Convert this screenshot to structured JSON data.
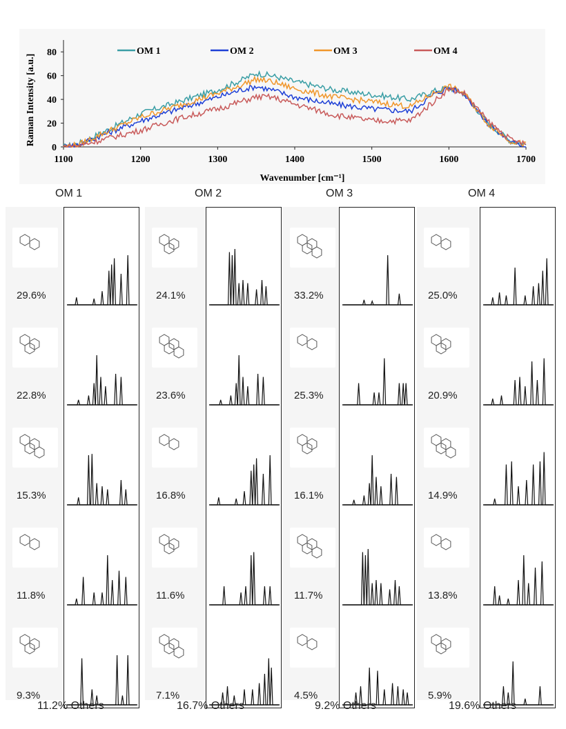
{
  "chart_data": [
    {
      "type": "line",
      "xlabel": "Wavenumber [cm⁻¹]",
      "ylabel": "Raman Intensity [a.u.]",
      "xlim": [
        1100,
        1700
      ],
      "ylim": [
        0,
        90
      ],
      "x_ticks": [
        "1100",
        "1200",
        "1300",
        "1400",
        "1500",
        "1600",
        "1700"
      ],
      "y_ticks": [
        "0",
        "20",
        "40",
        "60",
        "80"
      ],
      "legend_position": "top",
      "series": [
        {
          "name": "OM 1",
          "color": "#3a9ea5",
          "x": [
            1100,
            1120,
            1150,
            1200,
            1250,
            1300,
            1330,
            1350,
            1370,
            1400,
            1450,
            1500,
            1550,
            1580,
            1600,
            1620,
            1650,
            1680,
            1700
          ],
          "values": [
            0,
            3,
            12,
            28,
            38,
            48,
            56,
            62,
            60,
            55,
            48,
            44,
            40,
            47,
            50,
            45,
            20,
            5,
            2
          ]
        },
        {
          "name": "OM 2",
          "color": "#1d3fd6",
          "x": [
            1100,
            1120,
            1150,
            1200,
            1250,
            1300,
            1330,
            1350,
            1370,
            1400,
            1450,
            1500,
            1550,
            1580,
            1600,
            1620,
            1650,
            1680,
            1700
          ],
          "values": [
            0,
            2,
            10,
            22,
            32,
            42,
            48,
            51,
            48,
            42,
            36,
            32,
            30,
            44,
            50,
            45,
            20,
            4,
            1
          ]
        },
        {
          "name": "OM 3",
          "color": "#f0962a",
          "x": [
            1100,
            1120,
            1150,
            1200,
            1250,
            1300,
            1330,
            1350,
            1370,
            1400,
            1450,
            1500,
            1550,
            1580,
            1600,
            1620,
            1650,
            1680,
            1700
          ],
          "values": [
            0,
            2,
            11,
            25,
            35,
            45,
            52,
            57,
            55,
            49,
            42,
            38,
            34,
            45,
            51,
            45,
            20,
            5,
            2
          ]
        },
        {
          "name": "OM 4",
          "color": "#c85a5a",
          "x": [
            1100,
            1120,
            1150,
            1200,
            1250,
            1300,
            1330,
            1350,
            1370,
            1400,
            1450,
            1500,
            1550,
            1580,
            1600,
            1620,
            1650,
            1680,
            1700
          ],
          "values": [
            0,
            1,
            6,
            14,
            24,
            32,
            38,
            42,
            42,
            36,
            27,
            22,
            22,
            38,
            49,
            45,
            22,
            6,
            2
          ]
        }
      ]
    },
    {
      "type": "line",
      "grid_of_spectra": true,
      "columns": [
        {
          "title": "OM 1",
          "others": "11.2% Others",
          "rows": [
            {
              "pct": "29.6%",
              "peaks": [
                [
                  0.12,
                  0.12
                ],
                [
                  0.38,
                  0.1
                ],
                [
                  0.5,
                  0.22
                ],
                [
                  0.6,
                  0.55
                ],
                [
                  0.64,
                  0.65
                ],
                [
                  0.68,
                  0.75
                ],
                [
                  0.78,
                  0.5
                ],
                [
                  0.88,
                  0.8
                ]
              ]
            },
            {
              "pct": "22.8%",
              "peaks": [
                [
                  0.15,
                  0.08
                ],
                [
                  0.3,
                  0.15
                ],
                [
                  0.38,
                  0.35
                ],
                [
                  0.42,
                  0.8
                ],
                [
                  0.48,
                  0.45
                ],
                [
                  0.55,
                  0.3
                ],
                [
                  0.7,
                  0.5
                ],
                [
                  0.78,
                  0.45
                ]
              ]
            },
            {
              "pct": "15.3%",
              "peaks": [
                [
                  0.15,
                  0.12
                ],
                [
                  0.3,
                  0.8
                ],
                [
                  0.35,
                  0.82
                ],
                [
                  0.42,
                  0.35
                ],
                [
                  0.5,
                  0.3
                ],
                [
                  0.58,
                  0.25
                ],
                [
                  0.78,
                  0.4
                ],
                [
                  0.85,
                  0.25
                ]
              ]
            },
            {
              "pct": "11.8%",
              "peaks": [
                [
                  0.12,
                  0.1
                ],
                [
                  0.22,
                  0.45
                ],
                [
                  0.38,
                  0.2
                ],
                [
                  0.5,
                  0.2
                ],
                [
                  0.58,
                  0.8
                ],
                [
                  0.65,
                  0.4
                ],
                [
                  0.75,
                  0.55
                ],
                [
                  0.85,
                  0.45
                ]
              ]
            },
            {
              "pct": "9.3%",
              "peaks": [
                [
                  0.2,
                  0.75
                ],
                [
                  0.35,
                  0.25
                ],
                [
                  0.42,
                  0.15
                ],
                [
                  0.72,
                  0.8
                ],
                [
                  0.8,
                  0.15
                ],
                [
                  0.88,
                  0.8
                ]
              ]
            }
          ]
        },
        {
          "title": "OM 2",
          "others": "16.7% Others",
          "rows": [
            {
              "pct": "24.1%",
              "peaks": [
                [
                  0.28,
                  0.85
                ],
                [
                  0.32,
                  0.8
                ],
                [
                  0.36,
                  0.9
                ],
                [
                  0.42,
                  0.35
                ],
                [
                  0.48,
                  0.4
                ],
                [
                  0.55,
                  0.35
                ],
                [
                  0.68,
                  0.25
                ],
                [
                  0.76,
                  0.4
                ],
                [
                  0.82,
                  0.3
                ]
              ]
            },
            {
              "pct": "23.6%",
              "peaks": [
                [
                  0.15,
                  0.08
                ],
                [
                  0.3,
                  0.15
                ],
                [
                  0.38,
                  0.35
                ],
                [
                  0.42,
                  0.8
                ],
                [
                  0.48,
                  0.45
                ],
                [
                  0.55,
                  0.3
                ],
                [
                  0.7,
                  0.5
                ],
                [
                  0.78,
                  0.45
                ]
              ]
            },
            {
              "pct": "16.8%",
              "peaks": [
                [
                  0.12,
                  0.12
                ],
                [
                  0.38,
                  0.1
                ],
                [
                  0.5,
                  0.22
                ],
                [
                  0.6,
                  0.55
                ],
                [
                  0.64,
                  0.65
                ],
                [
                  0.68,
                  0.75
                ],
                [
                  0.78,
                  0.5
                ],
                [
                  0.88,
                  0.8
                ]
              ]
            },
            {
              "pct": "11.6%",
              "peaks": [
                [
                  0.2,
                  0.3
                ],
                [
                  0.45,
                  0.2
                ],
                [
                  0.52,
                  0.3
                ],
                [
                  0.6,
                  0.8
                ],
                [
                  0.64,
                  0.85
                ],
                [
                  0.8,
                  0.3
                ],
                [
                  0.88,
                  0.3
                ]
              ]
            },
            {
              "pct": "7.1%",
              "peaks": [
                [
                  0.18,
                  0.2
                ],
                [
                  0.25,
                  0.3
                ],
                [
                  0.35,
                  0.15
                ],
                [
                  0.5,
                  0.25
                ],
                [
                  0.62,
                  0.25
                ],
                [
                  0.72,
                  0.35
                ],
                [
                  0.8,
                  0.5
                ],
                [
                  0.86,
                  0.75
                ],
                [
                  0.9,
                  0.6
                ]
              ]
            }
          ]
        },
        {
          "title": "OM 3",
          "others": "9.2% Others",
          "rows": [
            {
              "pct": "33.2%",
              "peaks": [
                [
                  0.3,
                  0.08
                ],
                [
                  0.42,
                  0.06
                ],
                [
                  0.65,
                  0.8
                ],
                [
                  0.82,
                  0.18
                ]
              ]
            },
            {
              "pct": "25.3%",
              "peaks": [
                [
                  0.22,
                  0.35
                ],
                [
                  0.45,
                  0.2
                ],
                [
                  0.52,
                  0.2
                ],
                [
                  0.6,
                  0.75
                ],
                [
                  0.82,
                  0.35
                ],
                [
                  0.88,
                  0.35
                ],
                [
                  0.92,
                  0.35
                ]
              ]
            },
            {
              "pct": "16.1%",
              "peaks": [
                [
                  0.15,
                  0.08
                ],
                [
                  0.3,
                  0.15
                ],
                [
                  0.38,
                  0.35
                ],
                [
                  0.42,
                  0.8
                ],
                [
                  0.48,
                  0.45
                ],
                [
                  0.55,
                  0.3
                ],
                [
                  0.7,
                  0.5
                ],
                [
                  0.78,
                  0.45
                ]
              ]
            },
            {
              "pct": "11.7%",
              "peaks": [
                [
                  0.28,
                  0.85
                ],
                [
                  0.32,
                  0.8
                ],
                [
                  0.36,
                  0.9
                ],
                [
                  0.42,
                  0.35
                ],
                [
                  0.48,
                  0.4
                ],
                [
                  0.55,
                  0.35
                ],
                [
                  0.68,
                  0.25
                ],
                [
                  0.76,
                  0.4
                ],
                [
                  0.82,
                  0.3
                ]
              ]
            },
            {
              "pct": "4.5%",
              "peaks": [
                [
                  0.18,
                  0.2
                ],
                [
                  0.25,
                  0.3
                ],
                [
                  0.38,
                  0.6
                ],
                [
                  0.5,
                  0.55
                ],
                [
                  0.6,
                  0.25
                ],
                [
                  0.72,
                  0.35
                ],
                [
                  0.8,
                  0.3
                ],
                [
                  0.88,
                  0.25
                ],
                [
                  0.94,
                  0.2
                ]
              ]
            }
          ]
        },
        {
          "title": "OM 4",
          "others": "19.6% Others",
          "rows": [
            {
              "pct": "25.0%",
              "peaks": [
                [
                  0.12,
                  0.12
                ],
                [
                  0.22,
                  0.2
                ],
                [
                  0.32,
                  0.15
                ],
                [
                  0.45,
                  0.6
                ],
                [
                  0.6,
                  0.15
                ],
                [
                  0.72,
                  0.3
                ],
                [
                  0.8,
                  0.35
                ],
                [
                  0.86,
                  0.55
                ],
                [
                  0.92,
                  0.75
                ]
              ]
            },
            {
              "pct": "20.9%",
              "peaks": [
                [
                  0.12,
                  0.1
                ],
                [
                  0.25,
                  0.15
                ],
                [
                  0.45,
                  0.4
                ],
                [
                  0.52,
                  0.45
                ],
                [
                  0.6,
                  0.3
                ],
                [
                  0.7,
                  0.7
                ],
                [
                  0.78,
                  0.4
                ],
                [
                  0.88,
                  0.75
                ]
              ]
            },
            {
              "pct": "14.9%",
              "peaks": [
                [
                  0.15,
                  0.1
                ],
                [
                  0.32,
                  0.65
                ],
                [
                  0.4,
                  0.7
                ],
                [
                  0.5,
                  0.3
                ],
                [
                  0.62,
                  0.4
                ],
                [
                  0.72,
                  0.65
                ],
                [
                  0.82,
                  0.7
                ],
                [
                  0.88,
                  0.85
                ]
              ]
            },
            {
              "pct": "13.8%",
              "peaks": [
                [
                  0.15,
                  0.3
                ],
                [
                  0.22,
                  0.15
                ],
                [
                  0.35,
                  0.1
                ],
                [
                  0.5,
                  0.4
                ],
                [
                  0.58,
                  0.8
                ],
                [
                  0.65,
                  0.35
                ],
                [
                  0.75,
                  0.6
                ],
                [
                  0.85,
                  0.7
                ]
              ]
            },
            {
              "pct": "5.9%",
              "peaks": [
                [
                  0.28,
                  0.3
                ],
                [
                  0.35,
                  0.2
                ],
                [
                  0.42,
                  0.7
                ],
                [
                  0.6,
                  0.1
                ],
                [
                  0.82,
                  0.3
                ]
              ]
            }
          ]
        }
      ]
    }
  ]
}
